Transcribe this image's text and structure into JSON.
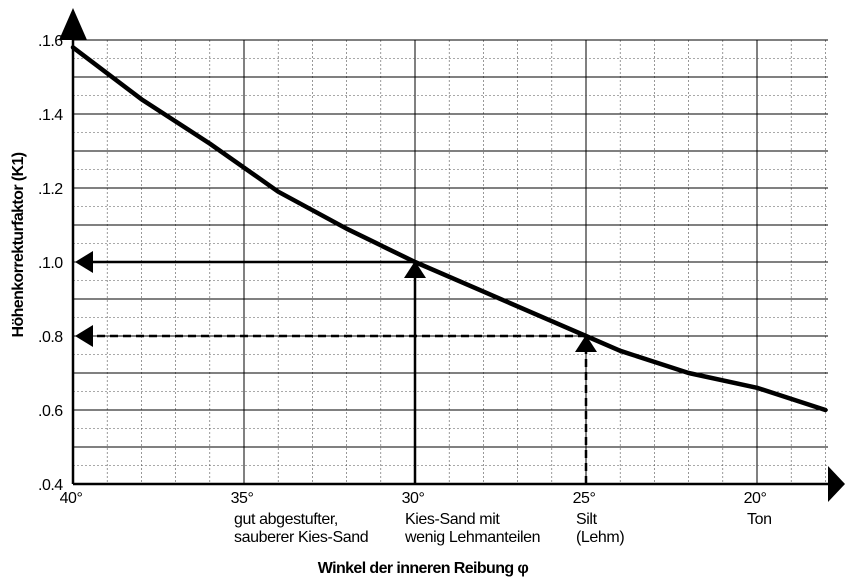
{
  "chart_data": {
    "type": "line",
    "title": "",
    "xlabel": "Winkel der inneren Reibung φ",
    "ylabel": "Höhenkorrekturfaktor (K1)",
    "x_reversed": true,
    "xlim": [
      40,
      18
    ],
    "ylim": [
      0.4,
      1.6
    ],
    "grid": true,
    "x_ticks": [
      40,
      35,
      30,
      25,
      20
    ],
    "x_tick_labels": [
      "40°",
      "35°",
      "30°",
      "25°",
      "20°"
    ],
    "y_ticks": [
      0.4,
      0.6,
      0.8,
      1.0,
      1.2,
      1.4,
      1.6
    ],
    "y_tick_labels": [
      ".0.4",
      ".0.6",
      ".0.8",
      ".1.0",
      ".1.2",
      ".1.4",
      ".1.6"
    ],
    "series": [
      {
        "x": [
          40,
          38,
          36,
          34,
          32,
          30,
          28,
          26,
          25,
          24,
          22,
          20,
          18
        ],
        "y": [
          1.58,
          1.44,
          1.32,
          1.19,
          1.09,
          1.0,
          0.92,
          0.84,
          0.8,
          0.76,
          0.7,
          0.66,
          0.6
        ]
      }
    ],
    "categories": [
      {
        "x": 35,
        "lines": [
          "gut abgestufter,",
          "sauberer Kies-Sand"
        ]
      },
      {
        "x": 30,
        "lines": [
          "Kies-Sand mit",
          "wenig Lehmanteilen"
        ]
      },
      {
        "x": 25,
        "lines": [
          "Silt",
          "(Lehm)"
        ]
      },
      {
        "x": 20,
        "lines": [
          "Ton"
        ]
      }
    ],
    "annotations": [
      {
        "from_x": 30,
        "to_y": 1.0,
        "style": "solid"
      },
      {
        "from_x": 25,
        "to_y": 0.8,
        "style": "dashed"
      }
    ]
  }
}
